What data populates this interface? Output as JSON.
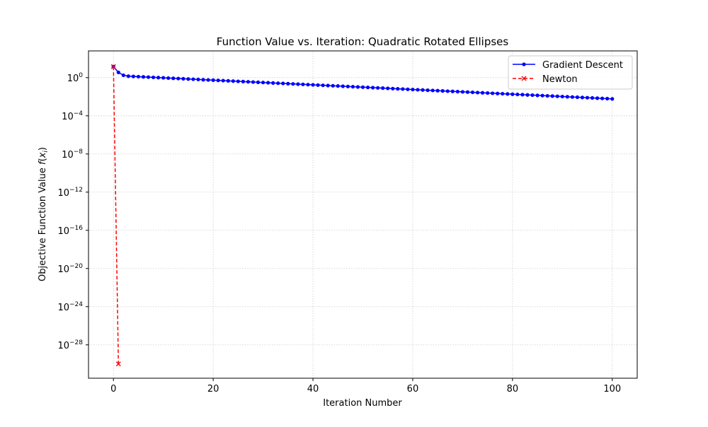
{
  "chart_data": {
    "type": "line",
    "title": "Function Value vs. Iteration: Quadratic Rotated Ellipses",
    "xlabel": "Iteration Number",
    "ylabel_main": "Objective Function Value ",
    "ylabel_math_f": "f",
    "ylabel_math_open": "(",
    "ylabel_math_x": "x",
    "ylabel_math_i": "i",
    "ylabel_math_close": ")",
    "xlim": [
      -5,
      105
    ],
    "ylog": true,
    "ylim_exp": [
      -31.5,
      2.8
    ],
    "grid": true,
    "grid_style": "dotted",
    "legend_position": "top-right",
    "xticks": [
      0,
      20,
      40,
      60,
      80,
      100
    ],
    "yticks_exp": [
      0,
      -4,
      -8,
      -12,
      -16,
      -20,
      -24,
      -28
    ],
    "ytick_base": "10",
    "ytick_labels": [
      "0",
      "−4",
      "−8",
      "−12",
      "−16",
      "−20",
      "−24",
      "−28"
    ],
    "series": [
      {
        "name": "Gradient Descent",
        "color": "#0000ff",
        "marker": "dot",
        "linestyle": "solid",
        "log10_curve": {
          "n_iterations": 100,
          "y0_log10": 1.15,
          "y1_log10": 0.55,
          "y2_log10": 0.25,
          "y3_log10": 0.15,
          "tail_slope": -0.0245
        }
      },
      {
        "name": "Newton",
        "color": "#ff0000",
        "marker": "x",
        "linestyle": "dashed",
        "x": [
          0,
          1
        ],
        "y_log10": [
          1.15,
          -30.0
        ]
      }
    ]
  }
}
